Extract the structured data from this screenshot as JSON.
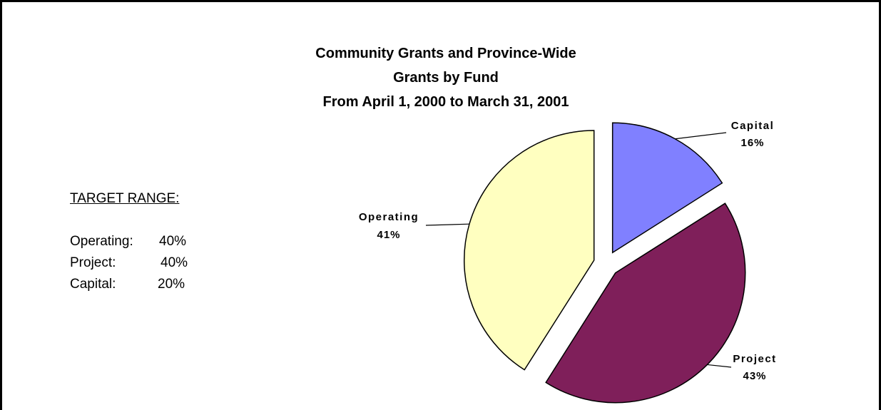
{
  "title_lines": [
    "Community Grants and Province-Wide",
    "Grants by Fund",
    "From April 1, 2000 to  March 31, 2001"
  ],
  "target_range": {
    "heading": "TARGET RANGE:",
    "items": [
      {
        "label": "Operating:",
        "value": "40%"
      },
      {
        "label": "Project:",
        "value": "40%"
      },
      {
        "label": "Capital:",
        "value": "20%"
      }
    ]
  },
  "chart_data": {
    "type": "pie",
    "title": "Community Grants and Province-Wide Grants by Fund From April 1, 2000 to  March 31, 2001",
    "slices": [
      {
        "label": "Capital",
        "value": 16,
        "value_label": "16%",
        "color": "#8080ff",
        "exploded": true
      },
      {
        "label": "Project",
        "value": 43,
        "value_label": "43%",
        "color": "#7f1f5a",
        "exploded": true
      },
      {
        "label": "Operating",
        "value": 41,
        "value_label": "41%",
        "color": "#ffffc0",
        "exploded": true
      }
    ],
    "start_angle_deg": 0,
    "direction": "clockwise",
    "legend": "none",
    "data_labels": "outside with leader lines"
  }
}
